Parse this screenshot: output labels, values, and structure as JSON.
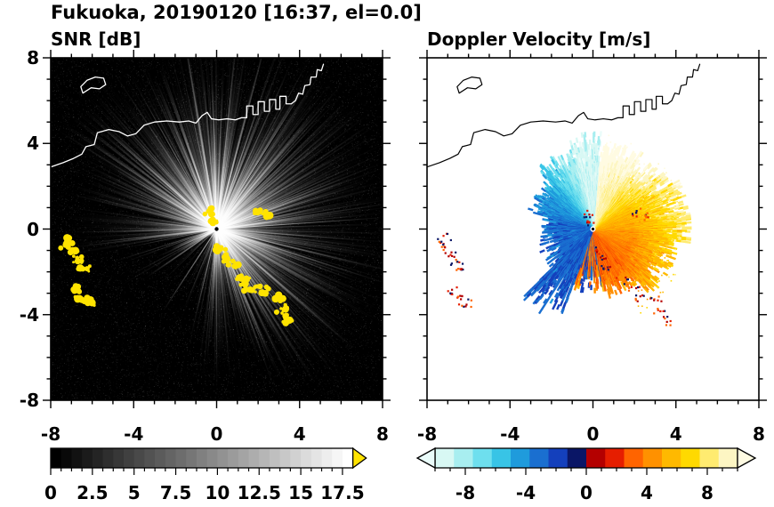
{
  "figure": {
    "title": "Fukuoka, 20190120 [16:37, el=0.0]"
  },
  "chart_data": [
    {
      "type": "heatmap",
      "panel": "left",
      "title": "SNR [dB]",
      "xlabel": "",
      "ylabel": "",
      "xlim": [
        -8,
        8
      ],
      "ylim": [
        -8,
        8
      ],
      "xticks": [
        -8,
        -4,
        0,
        4,
        8
      ],
      "yticks": [
        8,
        4,
        0,
        -4,
        -8
      ],
      "minor_tick_step": 1,
      "background_color": "#000000",
      "field_description": "PPI radar image of signal-to-noise ratio: grainy white/gray radial streaks radiating from the radar at (0,0) over a black background; yellow over-range echo cells in an arc from south to southeast of the radar, two clusters near x=-7, and small cells just north and east-northeast of the radar; white coastline with rectangular harbor piers across the top of the domain and a small island near the top-left",
      "colorbar": {
        "orientation": "horizontal",
        "min": 0,
        "max": 17.5,
        "tick_values": [
          0,
          2.5,
          5,
          7.5,
          10,
          12.5,
          15,
          17.5
        ],
        "tick_labels": [
          "0",
          "2.5",
          "5",
          "7.5",
          "10",
          "12.5",
          "15",
          "17.5"
        ],
        "minor_tick_step": 0.625,
        "colormap": "grayscale black to white",
        "over_arrow_color": "#ffe300"
      }
    },
    {
      "type": "heatmap",
      "panel": "right",
      "title": "Doppler Velocity [m/s]",
      "xlabel": "",
      "ylabel": "",
      "xlim": [
        -8,
        8
      ],
      "ylim": [
        -8,
        8
      ],
      "xticks": [
        -8,
        -4,
        0,
        4,
        8
      ],
      "yticks": [
        8,
        4,
        0,
        -4,
        -8
      ],
      "minor_tick_step": 1,
      "background_color": "#ffffff",
      "field_description": "PPI of Doppler velocity on white background: negative velocities (cyan to dark navy) in the north-to-northwest sector with a dark navy wedge near due north, positive velocities (red through orange to pale yellow) from northeast through east to south, a sharp navy/red folding boundary just east of north, thin cyan streaks toward the southwest, and small red/navy specks at the strong-echo locations; black coastline across the top",
      "colorbar": {
        "orientation": "horizontal",
        "min": -10,
        "max": 10,
        "tick_values": [
          -8,
          -4,
          0,
          4,
          8
        ],
        "tick_labels": [
          "-8",
          "-4",
          "0",
          "4",
          "8"
        ],
        "minor_tick_step": 1,
        "bin_width": 1.25,
        "colors": [
          "#d8f8f4",
          "#a8eef0",
          "#6edfee",
          "#38c4e6",
          "#1f9bdc",
          "#1a6fd0",
          "#1440bc",
          "#0a1666",
          "#b40000",
          "#e61e00",
          "#ff6400",
          "#ff9100",
          "#ffb900",
          "#ffd900",
          "#ffeb70",
          "#fdf6c3"
        ],
        "under_arrow_color": "#eafcfa",
        "over_arrow_color": "#fffbe2"
      },
      "echo_speck_colors": [
        "#b40000",
        "#e61e00",
        "#0a1666",
        "#ff6400"
      ]
    }
  ],
  "coastline": {
    "mainland": [
      [
        -8,
        2.9
      ],
      [
        -7.4,
        3.1
      ],
      [
        -6.9,
        3.3
      ],
      [
        -6.5,
        3.5
      ],
      [
        -6.3,
        3.85
      ],
      [
        -5.9,
        3.95
      ],
      [
        -5.75,
        4.5
      ],
      [
        -5.2,
        4.65
      ],
      [
        -4.7,
        4.55
      ],
      [
        -4.3,
        4.35
      ],
      [
        -3.9,
        4.45
      ],
      [
        -3.5,
        4.85
      ],
      [
        -3.0,
        5.0
      ],
      [
        -2.4,
        5.05
      ],
      [
        -1.8,
        5.0
      ],
      [
        -1.35,
        5.05
      ],
      [
        -1.0,
        4.95
      ],
      [
        -0.7,
        5.3
      ],
      [
        -0.45,
        5.45
      ],
      [
        -0.25,
        5.15
      ],
      [
        0.1,
        5.1
      ],
      [
        0.5,
        5.15
      ],
      [
        0.9,
        5.1
      ],
      [
        1.2,
        5.2
      ],
      [
        1.45,
        5.2
      ],
      [
        1.45,
        5.75
      ],
      [
        1.75,
        5.75
      ],
      [
        1.75,
        5.35
      ],
      [
        2.0,
        5.35
      ],
      [
        2.0,
        5.95
      ],
      [
        2.3,
        5.95
      ],
      [
        2.3,
        5.5
      ],
      [
        2.55,
        5.5
      ],
      [
        2.55,
        6.05
      ],
      [
        2.85,
        6.05
      ],
      [
        2.85,
        5.6
      ],
      [
        3.05,
        5.6
      ],
      [
        3.05,
        6.2
      ],
      [
        3.35,
        6.2
      ],
      [
        3.35,
        5.85
      ],
      [
        3.6,
        5.85
      ],
      [
        3.8,
        6.0
      ],
      [
        3.95,
        6.35
      ],
      [
        4.15,
        6.3
      ],
      [
        4.25,
        6.7
      ],
      [
        4.5,
        6.75
      ],
      [
        4.55,
        7.1
      ],
      [
        4.8,
        7.1
      ],
      [
        4.85,
        7.45
      ],
      [
        5.05,
        7.4
      ],
      [
        5.15,
        7.7
      ]
    ],
    "island": [
      [
        -6.45,
        6.35
      ],
      [
        -6.05,
        6.6
      ],
      [
        -5.65,
        6.55
      ],
      [
        -5.35,
        6.75
      ],
      [
        -5.45,
        7.05
      ],
      [
        -5.85,
        7.1
      ],
      [
        -6.25,
        6.95
      ],
      [
        -6.55,
        6.65
      ],
      [
        -6.45,
        6.35
      ]
    ]
  },
  "strong_echoes": [
    [
      -7.15,
      -0.45,
      0.3
    ],
    [
      -7.3,
      -0.75,
      0.22
    ],
    [
      -6.85,
      -1.05,
      0.26
    ],
    [
      -6.6,
      -1.5,
      0.3
    ],
    [
      -6.4,
      -1.85,
      0.24
    ],
    [
      -6.85,
      -2.85,
      0.26
    ],
    [
      -6.55,
      -3.2,
      0.3
    ],
    [
      -6.15,
      -3.45,
      0.26
    ],
    [
      -0.25,
      0.75,
      0.26
    ],
    [
      -0.2,
      0.4,
      0.18
    ],
    [
      0.15,
      -0.95,
      0.2
    ],
    [
      0.45,
      -1.35,
      0.26
    ],
    [
      0.75,
      -1.75,
      0.3
    ],
    [
      1.2,
      -2.3,
      0.34
    ],
    [
      1.75,
      -2.75,
      0.38
    ],
    [
      2.35,
      -3.05,
      0.36
    ],
    [
      2.9,
      -3.25,
      0.3
    ],
    [
      3.2,
      -3.8,
      0.28
    ],
    [
      3.5,
      -4.25,
      0.26
    ],
    [
      2.05,
      0.8,
      0.26
    ],
    [
      2.5,
      0.65,
      0.18
    ]
  ]
}
